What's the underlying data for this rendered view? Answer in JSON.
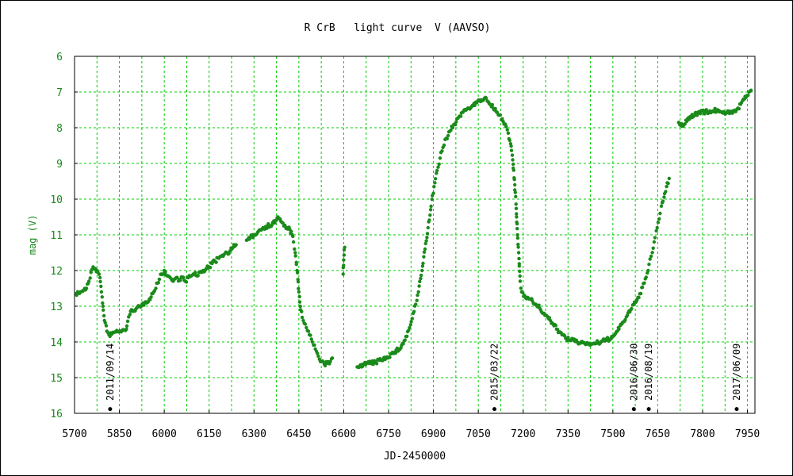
{
  "chart_data": {
    "type": "scatter",
    "title": "R CrB   light curve  V (AAVSO)",
    "xlabel": "JD-2450000",
    "ylabel": "mag (V)",
    "xlim": [
      5700,
      7975
    ],
    "ylim": [
      6,
      16
    ],
    "y_inverted": true,
    "grid": true,
    "x_ticks": [
      5700,
      5850,
      6000,
      6150,
      6300,
      6450,
      6600,
      6750,
      6900,
      7050,
      7200,
      7350,
      7500,
      7650,
      7800,
      7950
    ],
    "y_ticks": [
      6,
      7,
      8,
      9,
      10,
      11,
      12,
      13,
      14,
      15,
      16
    ],
    "x_grid_step": 75,
    "point_color": "#1a8a1a",
    "grid_color": "#00cc00",
    "curve": [
      [
        5705,
        12.65
      ],
      [
        5720,
        12.6
      ],
      [
        5730,
        12.55
      ],
      [
        5740,
        12.5
      ],
      [
        5748,
        12.3
      ],
      [
        5755,
        12.05
      ],
      [
        5762,
        11.9
      ],
      [
        5770,
        11.95
      ],
      [
        5778,
        12.05
      ],
      [
        5785,
        12.2
      ],
      [
        5790,
        12.6
      ],
      [
        5795,
        13.0
      ],
      [
        5800,
        13.4
      ],
      [
        5808,
        13.7
      ],
      [
        5815,
        13.8
      ],
      [
        5825,
        13.78
      ],
      [
        5835,
        13.72
      ],
      [
        5850,
        13.7
      ],
      [
        5870,
        13.68
      ],
      [
        5890,
        13.1
      ],
      [
        5905,
        13.08
      ],
      [
        5920,
        13.02
      ],
      [
        5935,
        12.9
      ],
      [
        5950,
        12.8
      ],
      [
        5965,
        12.6
      ],
      [
        5978,
        12.35
      ],
      [
        5990,
        12.1
      ],
      [
        6000,
        12.0
      ],
      [
        6010,
        12.15
      ],
      [
        6020,
        12.2
      ],
      [
        6030,
        12.3
      ],
      [
        6040,
        12.2
      ],
      [
        6050,
        12.25
      ],
      [
        6060,
        12.2
      ],
      [
        6070,
        12.3
      ],
      [
        6080,
        12.2
      ],
      [
        6090,
        12.15
      ],
      [
        6100,
        12.1
      ],
      [
        6110,
        12.15
      ],
      [
        6120,
        12.05
      ],
      [
        6130,
        12.0
      ],
      [
        6140,
        11.95
      ],
      [
        6150,
        11.9
      ],
      [
        6160,
        11.8
      ],
      [
        6170,
        11.75
      ],
      [
        6180,
        11.65
      ],
      [
        6190,
        11.6
      ],
      [
        6200,
        11.55
      ],
      [
        6210,
        11.5
      ],
      [
        6220,
        11.45
      ],
      [
        6230,
        11.35
      ],
      [
        6240,
        11.28
      ],
      [
        6275,
        11.15
      ],
      [
        6285,
        11.12
      ],
      [
        6300,
        11.0
      ],
      [
        6315,
        10.9
      ],
      [
        6330,
        10.8
      ],
      [
        6345,
        10.75
      ],
      [
        6360,
        10.72
      ],
      [
        6372,
        10.6
      ],
      [
        6380,
        10.5
      ],
      [
        6390,
        10.62
      ],
      [
        6400,
        10.75
      ],
      [
        6410,
        10.8
      ],
      [
        6420,
        10.85
      ],
      [
        6428,
        11.0
      ],
      [
        6432,
        11.2
      ],
      [
        6438,
        11.5
      ],
      [
        6444,
        12.0
      ],
      [
        6450,
        12.6
      ],
      [
        6456,
        13.1
      ],
      [
        6465,
        13.4
      ],
      [
        6475,
        13.6
      ],
      [
        6485,
        13.8
      ],
      [
        6495,
        14.0
      ],
      [
        6505,
        14.2
      ],
      [
        6515,
        14.4
      ],
      [
        6525,
        14.55
      ],
      [
        6535,
        14.62
      ],
      [
        6545,
        14.6
      ],
      [
        6555,
        14.55
      ],
      [
        6562,
        14.45
      ],
      [
        6598,
        12.1
      ],
      [
        6603,
        11.35
      ],
      [
        6645,
        14.7
      ],
      [
        6665,
        14.62
      ],
      [
        6685,
        14.6
      ],
      [
        6705,
        14.58
      ],
      [
        6725,
        14.5
      ],
      [
        6745,
        14.42
      ],
      [
        6765,
        14.32
      ],
      [
        6785,
        14.2
      ],
      [
        6805,
        13.95
      ],
      [
        6820,
        13.6
      ],
      [
        6835,
        13.15
      ],
      [
        6850,
        12.6
      ],
      [
        6862,
        12.0
      ],
      [
        6872,
        11.4
      ],
      [
        6882,
        10.8
      ],
      [
        6892,
        10.2
      ],
      [
        6902,
        9.65
      ],
      [
        6912,
        9.2
      ],
      [
        6922,
        8.85
      ],
      [
        6932,
        8.55
      ],
      [
        6942,
        8.3
      ],
      [
        6955,
        8.1
      ],
      [
        6970,
        7.9
      ],
      [
        6985,
        7.7
      ],
      [
        7000,
        7.55
      ],
      [
        7015,
        7.45
      ],
      [
        7030,
        7.38
      ],
      [
        7045,
        7.3
      ],
      [
        7060,
        7.22
      ],
      [
        7070,
        7.18
      ],
      [
        7080,
        7.25
      ],
      [
        7090,
        7.35
      ],
      [
        7100,
        7.45
      ],
      [
        7110,
        7.55
      ],
      [
        7120,
        7.65
      ],
      [
        7130,
        7.75
      ],
      [
        7140,
        7.9
      ],
      [
        7150,
        8.15
      ],
      [
        7158,
        8.45
      ],
      [
        7165,
        8.9
      ],
      [
        7172,
        9.6
      ],
      [
        7178,
        10.5
      ],
      [
        7185,
        11.5
      ],
      [
        7190,
        12.3
      ],
      [
        7195,
        12.6
      ],
      [
        7205,
        12.7
      ],
      [
        7215,
        12.75
      ],
      [
        7225,
        12.8
      ],
      [
        7240,
        12.95
      ],
      [
        7255,
        13.05
      ],
      [
        7270,
        13.2
      ],
      [
        7285,
        13.35
      ],
      [
        7300,
        13.5
      ],
      [
        7315,
        13.65
      ],
      [
        7330,
        13.8
      ],
      [
        7345,
        13.9
      ],
      [
        7360,
        13.95
      ],
      [
        7380,
        14.0
      ],
      [
        7400,
        14.02
      ],
      [
        7420,
        14.05
      ],
      [
        7440,
        14.05
      ],
      [
        7460,
        14.0
      ],
      [
        7480,
        13.95
      ],
      [
        7500,
        13.85
      ],
      [
        7515,
        13.7
      ],
      [
        7530,
        13.5
      ],
      [
        7545,
        13.3
      ],
      [
        7560,
        13.1
      ],
      [
        7575,
        12.9
      ],
      [
        7590,
        12.65
      ],
      [
        7605,
        12.35
      ],
      [
        7618,
        12.0
      ],
      [
        7628,
        11.6
      ],
      [
        7638,
        11.2
      ],
      [
        7648,
        10.8
      ],
      [
        7658,
        10.4
      ],
      [
        7665,
        10.1
      ],
      [
        7688,
        9.42
      ],
      [
        7720,
        7.85
      ],
      [
        7735,
        7.95
      ],
      [
        7750,
        7.75
      ],
      [
        7770,
        7.65
      ],
      [
        7790,
        7.55
      ],
      [
        7810,
        7.55
      ],
      [
        7830,
        7.55
      ],
      [
        7850,
        7.5
      ],
      [
        7870,
        7.55
      ],
      [
        7890,
        7.6
      ],
      [
        7905,
        7.55
      ],
      [
        7918,
        7.45
      ],
      [
        7930,
        7.3
      ],
      [
        7945,
        7.15
      ],
      [
        7955,
        7.0
      ],
      [
        7962,
        6.95
      ]
    ],
    "event_markers": [
      {
        "jd": 5819,
        "label": "2011/09/14"
      },
      {
        "jd": 7104,
        "label": "2015/03/22"
      },
      {
        "jd": 7570,
        "label": "2016/06/30"
      },
      {
        "jd": 7620,
        "label": "2016/08/19"
      },
      {
        "jd": 7914,
        "label": "2017/06/09"
      }
    ]
  }
}
